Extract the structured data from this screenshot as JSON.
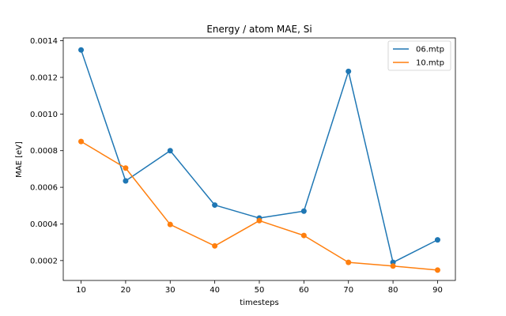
{
  "chart_data": {
    "type": "line",
    "title": "Energy / atom MAE, Si",
    "xlabel": "timesteps",
    "ylabel": "MAE [eV]",
    "x": [
      10,
      20,
      30,
      40,
      50,
      60,
      70,
      80,
      90
    ],
    "x_ticks": [
      "10",
      "20",
      "30",
      "40",
      "50",
      "60",
      "70",
      "80",
      "90"
    ],
    "xlim": [
      6.0,
      94.0
    ],
    "y_ticks": [
      "0.0002",
      "0.0004",
      "0.0006",
      "0.0008",
      "0.0010",
      "0.0012",
      "0.0014"
    ],
    "ylim": [
      9.15e-05,
      0.0014155
    ],
    "grid": false,
    "legend_position": "upper right",
    "series": [
      {
        "name": "06.mtp",
        "color": "#1f77b4",
        "values": [
          0.00135,
          0.000635,
          0.0008,
          0.000503,
          0.000432,
          0.00047,
          0.001233,
          0.00019,
          0.000313
        ]
      },
      {
        "name": "10.mtp",
        "color": "#ff7f0e",
        "values": [
          0.00085,
          0.000705,
          0.000397,
          0.00028,
          0.000418,
          0.000337,
          0.00019,
          0.00017,
          0.000148
        ]
      }
    ]
  }
}
